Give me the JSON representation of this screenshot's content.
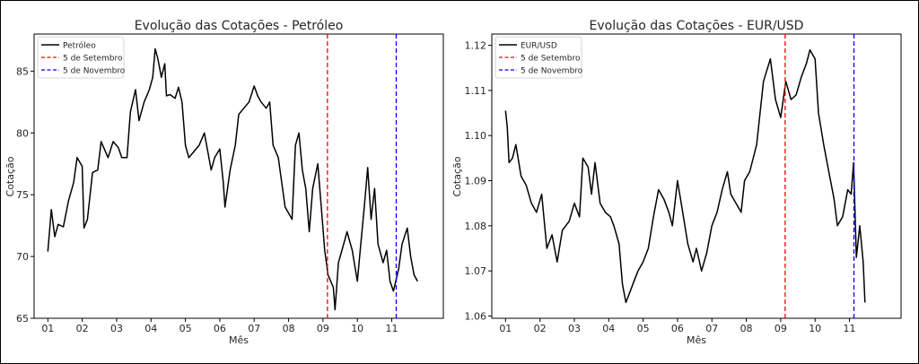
{
  "chart_data": [
    {
      "type": "line",
      "title": "Evolução das Cotações - Petróleo",
      "xlabel": "Mês",
      "ylabel": "Cotação",
      "xlim": [
        0.6,
        12.5
      ],
      "ylim": [
        65,
        88
      ],
      "x_ticks": [
        1,
        2,
        3,
        4,
        5,
        6,
        7,
        8,
        9,
        10,
        11
      ],
      "x_tick_labels": [
        "01",
        "02",
        "03",
        "04",
        "05",
        "06",
        "07",
        "08",
        "09",
        "10",
        "11"
      ],
      "y_ticks": [
        65,
        70,
        75,
        80,
        85
      ],
      "y_tick_labels": [
        "65",
        "70",
        "75",
        "80",
        "85"
      ],
      "grid": false,
      "legend": "top-left",
      "series": [
        {
          "name": "Petróleo",
          "color": "#000000",
          "points": [
            [
              1.0,
              70.4
            ],
            [
              1.1,
              73.8
            ],
            [
              1.2,
              71.6
            ],
            [
              1.3,
              72.6
            ],
            [
              1.45,
              72.4
            ],
            [
              1.6,
              74.5
            ],
            [
              1.75,
              76.0
            ],
            [
              1.85,
              78.0
            ],
            [
              2.0,
              77.3
            ],
            [
              2.05,
              72.3
            ],
            [
              2.15,
              73.0
            ],
            [
              2.3,
              76.8
            ],
            [
              2.45,
              77.0
            ],
            [
              2.55,
              79.3
            ],
            [
              2.75,
              78.0
            ],
            [
              2.9,
              79.3
            ],
            [
              3.05,
              78.8
            ],
            [
              3.15,
              78.0
            ],
            [
              3.3,
              78.0
            ],
            [
              3.4,
              81.7
            ],
            [
              3.55,
              83.5
            ],
            [
              3.65,
              81.0
            ],
            [
              3.8,
              82.5
            ],
            [
              3.95,
              83.5
            ],
            [
              4.05,
              84.5
            ],
            [
              4.12,
              86.8
            ],
            [
              4.2,
              86.0
            ],
            [
              4.3,
              84.5
            ],
            [
              4.4,
              85.6
            ],
            [
              4.45,
              83.0
            ],
            [
              4.55,
              83.1
            ],
            [
              4.7,
              82.8
            ],
            [
              4.8,
              83.7
            ],
            [
              4.9,
              82.5
            ],
            [
              5.0,
              79.0
            ],
            [
              5.1,
              78.0
            ],
            [
              5.25,
              78.5
            ],
            [
              5.4,
              79.0
            ],
            [
              5.55,
              80.0
            ],
            [
              5.65,
              78.5
            ],
            [
              5.75,
              77.0
            ],
            [
              5.85,
              78.0
            ],
            [
              6.0,
              78.7
            ],
            [
              6.1,
              76.0
            ],
            [
              6.15,
              74.0
            ],
            [
              6.3,
              77.0
            ],
            [
              6.45,
              79.0
            ],
            [
              6.55,
              81.5
            ],
            [
              6.7,
              82.0
            ],
            [
              6.85,
              82.5
            ],
            [
              7.0,
              83.8
            ],
            [
              7.1,
              83.0
            ],
            [
              7.2,
              82.5
            ],
            [
              7.35,
              82.0
            ],
            [
              7.45,
              82.5
            ],
            [
              7.55,
              79.0
            ],
            [
              7.7,
              78.0
            ],
            [
              7.85,
              75.0
            ],
            [
              7.9,
              74.0
            ],
            [
              8.0,
              73.5
            ],
            [
              8.1,
              73.0
            ],
            [
              8.2,
              79.0
            ],
            [
              8.3,
              80.0
            ],
            [
              8.4,
              77.0
            ],
            [
              8.5,
              75.5
            ],
            [
              8.6,
              72.0
            ],
            [
              8.7,
              75.5
            ],
            [
              8.85,
              77.5
            ],
            [
              8.95,
              74.0
            ],
            [
              9.05,
              70.5
            ],
            [
              9.15,
              68.5
            ],
            [
              9.3,
              67.5
            ],
            [
              9.35,
              65.7
            ],
            [
              9.45,
              69.5
            ],
            [
              9.55,
              70.5
            ],
            [
              9.7,
              72.0
            ],
            [
              9.85,
              70.5
            ],
            [
              10.0,
              68.0
            ],
            [
              10.1,
              71.0
            ],
            [
              10.2,
              74.0
            ],
            [
              10.3,
              77.2
            ],
            [
              10.4,
              73.0
            ],
            [
              10.5,
              75.5
            ],
            [
              10.6,
              71.0
            ],
            [
              10.75,
              69.5
            ],
            [
              10.85,
              70.5
            ],
            [
              10.95,
              68.0
            ],
            [
              11.05,
              67.2
            ],
            [
              11.2,
              69.0
            ],
            [
              11.3,
              71.0
            ],
            [
              11.45,
              72.3
            ],
            [
              11.55,
              70.0
            ],
            [
              11.65,
              68.5
            ],
            [
              11.75,
              68.0
            ]
          ]
        }
      ],
      "vlines": [
        {
          "name": "5 de Setembro",
          "x": 9.13,
          "color": "#ff0000"
        },
        {
          "name": "5 de Novembro",
          "x": 11.13,
          "color": "#0000ff"
        }
      ]
    },
    {
      "type": "line",
      "title": "Evolução das Cotações - EUR/USD",
      "xlabel": "Mês",
      "ylabel": "Cotação",
      "xlim": [
        0.6,
        12.5
      ],
      "ylim": [
        1.0595,
        1.1225
      ],
      "x_ticks": [
        1,
        2,
        3,
        4,
        5,
        6,
        7,
        8,
        9,
        10,
        11
      ],
      "x_tick_labels": [
        "01",
        "02",
        "03",
        "04",
        "05",
        "06",
        "07",
        "08",
        "09",
        "10",
        "11"
      ],
      "y_ticks": [
        1.06,
        1.07,
        1.08,
        1.09,
        1.1,
        1.11,
        1.12
      ],
      "y_tick_labels": [
        "1.06",
        "1.07",
        "1.08",
        "1.09",
        "1.10",
        "1.11",
        "1.12"
      ],
      "grid": false,
      "legend": "top-left",
      "series": [
        {
          "name": "EUR/USD",
          "color": "#000000",
          "points": [
            [
              1.0,
              1.1055
            ],
            [
              1.05,
              1.102
            ],
            [
              1.1,
              1.094
            ],
            [
              1.2,
              1.095
            ],
            [
              1.3,
              1.098
            ],
            [
              1.45,
              1.091
            ],
            [
              1.6,
              1.089
            ],
            [
              1.75,
              1.085
            ],
            [
              1.9,
              1.083
            ],
            [
              2.05,
              1.087
            ],
            [
              2.2,
              1.075
            ],
            [
              2.35,
              1.078
            ],
            [
              2.5,
              1.072
            ],
            [
              2.65,
              1.079
            ],
            [
              2.85,
              1.081
            ],
            [
              3.0,
              1.085
            ],
            [
              3.15,
              1.082
            ],
            [
              3.25,
              1.095
            ],
            [
              3.4,
              1.093
            ],
            [
              3.5,
              1.087
            ],
            [
              3.6,
              1.094
            ],
            [
              3.75,
              1.085
            ],
            [
              3.9,
              1.083
            ],
            [
              4.05,
              1.082
            ],
            [
              4.15,
              1.08
            ],
            [
              4.3,
              1.076
            ],
            [
              4.4,
              1.067
            ],
            [
              4.5,
              1.063
            ],
            [
              4.6,
              1.065
            ],
            [
              4.75,
              1.068
            ],
            [
              4.85,
              1.07
            ],
            [
              5.0,
              1.072
            ],
            [
              5.15,
              1.075
            ],
            [
              5.3,
              1.082
            ],
            [
              5.45,
              1.088
            ],
            [
              5.6,
              1.086
            ],
            [
              5.75,
              1.083
            ],
            [
              5.85,
              1.08
            ],
            [
              6.0,
              1.09
            ],
            [
              6.15,
              1.083
            ],
            [
              6.3,
              1.076
            ],
            [
              6.45,
              1.072
            ],
            [
              6.55,
              1.075
            ],
            [
              6.7,
              1.07
            ],
            [
              6.85,
              1.074
            ],
            [
              7.0,
              1.08
            ],
            [
              7.15,
              1.083
            ],
            [
              7.3,
              1.088
            ],
            [
              7.45,
              1.092
            ],
            [
              7.55,
              1.087
            ],
            [
              7.7,
              1.085
            ],
            [
              7.85,
              1.083
            ],
            [
              7.95,
              1.09
            ],
            [
              8.1,
              1.092
            ],
            [
              8.3,
              1.098
            ],
            [
              8.5,
              1.112
            ],
            [
              8.7,
              1.117
            ],
            [
              8.85,
              1.108
            ],
            [
              9.0,
              1.104
            ],
            [
              9.15,
              1.112
            ],
            [
              9.3,
              1.108
            ],
            [
              9.45,
              1.109
            ],
            [
              9.6,
              1.113
            ],
            [
              9.75,
              1.116
            ],
            [
              9.85,
              1.119
            ],
            [
              10.0,
              1.117
            ],
            [
              10.1,
              1.105
            ],
            [
              10.25,
              1.098
            ],
            [
              10.4,
              1.092
            ],
            [
              10.55,
              1.086
            ],
            [
              10.65,
              1.08
            ],
            [
              10.8,
              1.082
            ],
            [
              10.95,
              1.088
            ],
            [
              11.05,
              1.087
            ],
            [
              11.12,
              1.094
            ],
            [
              11.2,
              1.073
            ],
            [
              11.3,
              1.08
            ],
            [
              11.4,
              1.072
            ],
            [
              11.45,
              1.063
            ]
          ]
        }
      ],
      "vlines": [
        {
          "name": "5 de Setembro",
          "x": 9.13,
          "color": "#ff0000"
        },
        {
          "name": "5 de Novembro",
          "x": 11.13,
          "color": "#0000ff"
        }
      ]
    }
  ]
}
